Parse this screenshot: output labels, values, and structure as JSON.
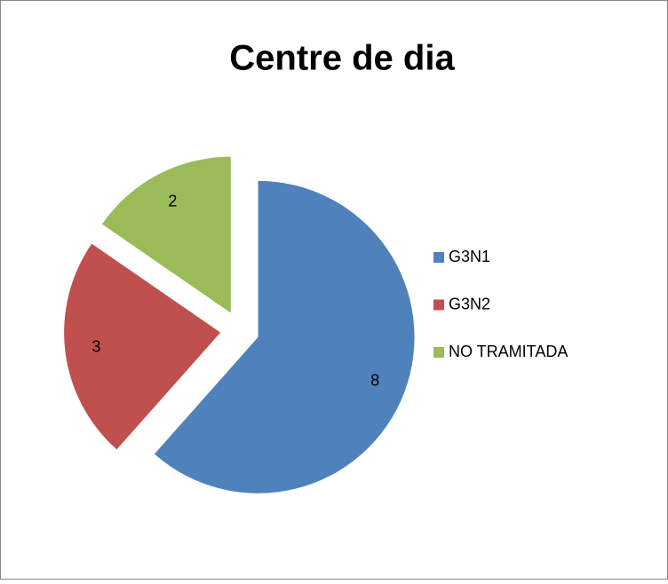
{
  "chart_data": {
    "type": "pie",
    "title": "Centre de dia",
    "categories": [
      "G3N1",
      "G3N2",
      "NO TRAMITADA"
    ],
    "values": [
      8,
      3,
      2
    ],
    "colors": [
      "#4f81bd",
      "#c0504d",
      "#9bbb59"
    ],
    "exploded": true,
    "legend": "right"
  }
}
